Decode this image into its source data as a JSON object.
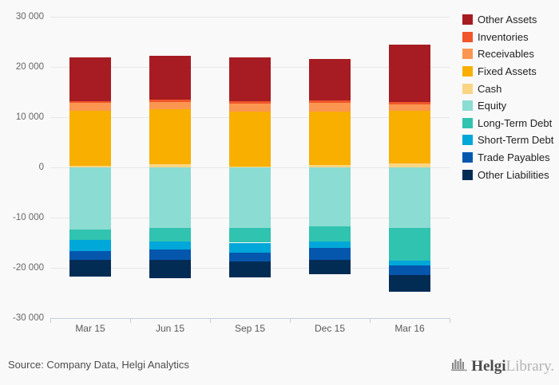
{
  "chart_data": {
    "type": "bar",
    "stacked": true,
    "title": "",
    "xlabel": "",
    "ylabel": "",
    "categories": [
      "Mar 15",
      "Jun 15",
      "Sep 15",
      "Dec 15",
      "Mar 16"
    ],
    "series": [
      {
        "name": "Other Assets",
        "color": "#A61C22",
        "values": [
          8700,
          8700,
          8800,
          8300,
          11400
        ]
      },
      {
        "name": "Inventories",
        "color": "#F1562A",
        "values": [
          300,
          500,
          400,
          500,
          500
        ]
      },
      {
        "name": "Receivables",
        "color": "#FB9650",
        "values": [
          1700,
          1400,
          1600,
          1700,
          1300
        ]
      },
      {
        "name": "Fixed Assets",
        "color": "#F8AF00",
        "values": [
          10900,
          10900,
          10900,
          10600,
          10400
        ]
      },
      {
        "name": "Cash",
        "color": "#FAD584",
        "values": [
          300,
          700,
          200,
          500,
          800
        ]
      },
      {
        "name": "Equity",
        "color": "#8BDCD2",
        "values": [
          -12400,
          -12000,
          -12100,
          -11800,
          -12000
        ]
      },
      {
        "name": "Long-Term Debt",
        "color": "#30C3B0",
        "values": [
          -2000,
          -2800,
          -2900,
          -2900,
          -6500
        ]
      },
      {
        "name": "Short-Term Debt",
        "color": "#00A7D9",
        "values": [
          -2300,
          -1600,
          -2000,
          -1400,
          -1100
        ]
      },
      {
        "name": "Trade Payables",
        "color": "#0557AE",
        "values": [
          -1700,
          -2000,
          -1700,
          -2300,
          -1800
        ]
      },
      {
        "name": "Other Liabilities",
        "color": "#032C55",
        "values": [
          -3400,
          -3700,
          -3200,
          -2900,
          -3400
        ]
      }
    ],
    "ylim": [
      -30000,
      30000
    ],
    "ytick_step": 10000,
    "ytick_labels": [
      "30 000",
      "20 000",
      "10 000",
      "0",
      "-10 000",
      "-20 000",
      "-30 000"
    ],
    "legend_position": "right",
    "grid": true
  },
  "footer": {
    "source": "Source: Company Data, Helgi Analytics",
    "logo_primary": "Helgi",
    "logo_secondary": "Library."
  }
}
